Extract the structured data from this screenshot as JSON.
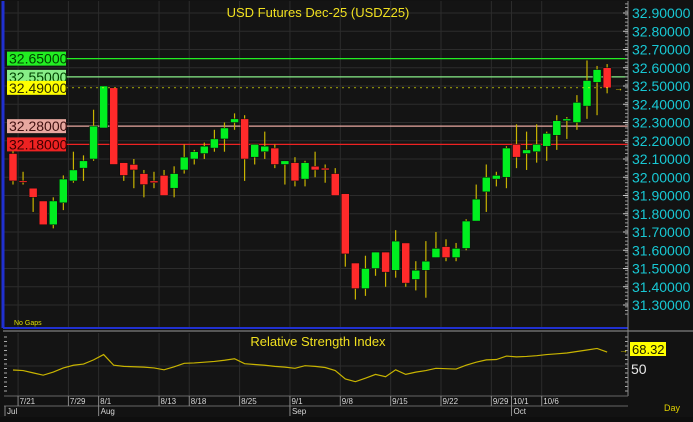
{
  "window": {
    "title": "USD Futures Dec-25 (USDZ25)",
    "gap_mode": "No Gaps",
    "period": "Day"
  },
  "colors": {
    "background": "#141414",
    "up_candle": "#00f020",
    "down_candle": "#ff2a2a",
    "wick": "#c8b400",
    "axis_text": "#18c8d4",
    "title_text": "#f0e020",
    "rsi_line": "#c8b400"
  },
  "price_axis": {
    "ticks": [
      "32.90000",
      "32.80000",
      "32.70000",
      "32.60000",
      "32.50000",
      "32.40000",
      "32.30000",
      "32.20000",
      "32.10000",
      "32.00000",
      "31.90000",
      "31.80000",
      "31.70000",
      "31.60000",
      "31.50000",
      "31.40000",
      "31.30000"
    ]
  },
  "levels": [
    {
      "label": "32.65000",
      "value": 32.65,
      "color": "#22ee22",
      "text_color": "#004400"
    },
    {
      "label": "32.55000",
      "value": 32.55,
      "color": "#88ee88",
      "text_color": "#004400"
    },
    {
      "label": "32.28000",
      "value": 32.28,
      "color": "#e8a8a0",
      "text_color": "#401010"
    },
    {
      "label": "32.18000",
      "value": 32.18,
      "color": "#ee2222",
      "text_color": "#400000"
    }
  ],
  "last_price": {
    "label": "32.49000",
    "value": 32.49,
    "color": "#ffff00"
  },
  "rsi": {
    "title": "Relative Strength Index",
    "last_label": "68.32",
    "mid_label": "50",
    "values": [
      44.8,
      44,
      41,
      38,
      42,
      47.5,
      51,
      52.5,
      58,
      65,
      51,
      49.5,
      49,
      48.5,
      47.5,
      45,
      49,
      53.5,
      54,
      55,
      56,
      57.5,
      59.5,
      53,
      52,
      51,
      49.5,
      48.5,
      47,
      50.4,
      49.5,
      48,
      44,
      33,
      29.5,
      34,
      39,
      36,
      45,
      39,
      42,
      44,
      47,
      46.5,
      46,
      51,
      55,
      58,
      58.5,
      63,
      62,
      62.5,
      63.5,
      65,
      66,
      67,
      69,
      71,
      73,
      68.32
    ]
  },
  "date_axis": {
    "days": [
      {
        "label": "7/21",
        "index": 1
      },
      {
        "label": "7/29",
        "index": 6
      },
      {
        "label": "8/1",
        "index": 9
      },
      {
        "label": "8/13",
        "index": 15
      },
      {
        "label": "8/18",
        "index": 18
      },
      {
        "label": "8/25",
        "index": 23
      },
      {
        "label": "9/1",
        "index": 28
      },
      {
        "label": "9/8",
        "index": 33
      },
      {
        "label": "9/15",
        "index": 38
      },
      {
        "label": "9/22",
        "index": 43
      },
      {
        "label": "9/29",
        "index": 48
      },
      {
        "label": "10/1",
        "index": 50
      },
      {
        "label": "10/6",
        "index": 53
      }
    ],
    "months": [
      {
        "label": "Jul",
        "index": 0
      },
      {
        "label": "Aug",
        "index": 9
      },
      {
        "label": "Sep",
        "index": 28
      },
      {
        "label": "Oct",
        "index": 50
      }
    ]
  },
  "chart_data": {
    "type": "candlestick",
    "title": "USD Futures Dec-25 (USDZ25)",
    "ylim": [
      31.25,
      32.96
    ],
    "ohlc": [
      [
        32.13,
        32.17,
        31.96,
        31.98
      ],
      [
        31.98,
        32.03,
        31.96,
        31.975
      ],
      [
        31.94,
        31.94,
        31.81,
        31.89
      ],
      [
        31.87,
        31.87,
        31.74,
        31.74
      ],
      [
        31.74,
        31.89,
        31.72,
        31.87
      ],
      [
        31.86,
        32.01,
        31.82,
        31.99
      ],
      [
        31.98,
        32.14,
        31.97,
        32.04
      ],
      [
        32.05,
        32.12,
        31.98,
        32.09
      ],
      [
        32.1,
        32.37,
        32.09,
        32.28
      ],
      [
        32.27,
        32.5,
        32.27,
        32.5
      ],
      [
        32.49,
        32.49,
        32.07,
        32.07
      ],
      [
        32.08,
        32.08,
        31.98,
        32.01
      ],
      [
        32.07,
        32.1,
        31.94,
        32.04
      ],
      [
        32.02,
        32.04,
        31.89,
        31.96
      ],
      [
        31.98,
        32.03,
        31.94,
        31.97
      ],
      [
        32.01,
        32.04,
        31.9,
        31.9
      ],
      [
        31.94,
        32.06,
        31.89,
        32.02
      ],
      [
        32.04,
        32.18,
        32.02,
        32.11
      ],
      [
        32.1,
        32.15,
        32.07,
        32.14
      ],
      [
        32.13,
        32.19,
        32.1,
        32.17
      ],
      [
        32.16,
        32.26,
        32.14,
        32.21
      ],
      [
        32.21,
        32.3,
        32.14,
        32.27
      ],
      [
        32.3,
        32.35,
        32.26,
        32.32
      ],
      [
        32.32,
        32.34,
        31.98,
        32.1
      ],
      [
        32.11,
        32.18,
        32.07,
        32.18
      ],
      [
        32.14,
        32.25,
        32.1,
        32.17
      ],
      [
        32.16,
        32.18,
        32.05,
        32.07
      ],
      [
        32.07,
        32.09,
        31.96,
        32.09
      ],
      [
        32.08,
        32.11,
        31.95,
        31.98
      ],
      [
        31.99,
        32.09,
        31.95,
        32.08
      ],
      [
        32.06,
        32.14,
        32.0,
        32.04
      ],
      [
        32.05,
        32.07,
        31.97,
        32.04
      ],
      [
        32.02,
        32.05,
        31.9,
        31.9
      ],
      [
        31.91,
        31.91,
        31.51,
        31.58
      ],
      [
        31.53,
        31.53,
        31.33,
        31.39
      ],
      [
        31.39,
        31.57,
        31.35,
        31.5
      ],
      [
        31.5,
        31.59,
        31.46,
        31.59
      ],
      [
        31.59,
        31.59,
        31.4,
        31.48
      ],
      [
        31.49,
        31.71,
        31.45,
        31.65
      ],
      [
        31.64,
        31.64,
        31.4,
        31.42
      ],
      [
        31.44,
        31.54,
        31.38,
        31.49
      ],
      [
        31.49,
        31.65,
        31.34,
        31.54
      ],
      [
        31.56,
        31.7,
        31.56,
        31.61
      ],
      [
        31.62,
        31.66,
        31.54,
        31.56
      ],
      [
        31.56,
        31.64,
        31.54,
        31.61
      ],
      [
        31.61,
        31.77,
        31.6,
        31.76
      ],
      [
        31.76,
        31.96,
        31.76,
        31.88
      ],
      [
        31.92,
        32.07,
        31.81,
        32.0
      ],
      [
        31.99,
        32.03,
        31.95,
        32.01
      ],
      [
        32.0,
        32.17,
        31.94,
        32.16
      ],
      [
        32.18,
        32.29,
        32.05,
        32.11
      ],
      [
        32.13,
        32.25,
        32.04,
        32.15
      ],
      [
        32.14,
        32.29,
        32.08,
        32.18
      ],
      [
        32.17,
        32.25,
        32.09,
        32.24
      ],
      [
        32.23,
        32.34,
        32.15,
        32.31
      ],
      [
        32.31,
        32.33,
        32.21,
        32.32
      ],
      [
        32.3,
        32.45,
        32.26,
        32.41
      ],
      [
        32.39,
        32.64,
        32.32,
        32.53
      ],
      [
        32.52,
        32.61,
        32.34,
        32.59
      ],
      [
        32.6,
        32.62,
        32.46,
        32.49
      ]
    ]
  }
}
